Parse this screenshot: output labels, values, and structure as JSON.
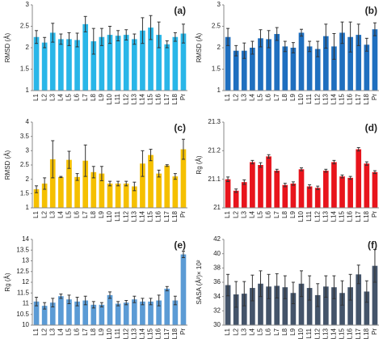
{
  "chart_data": [
    {
      "type": "bar",
      "label": "(a)",
      "ylabel": "RMSD (Å)",
      "color": "#29b6e8",
      "categories": [
        "L1",
        "L2",
        "L3",
        "L4",
        "L5",
        "L6",
        "L7",
        "L8",
        "L9",
        "L10",
        "L11",
        "L12",
        "L13",
        "L14",
        "L15",
        "L16",
        "L17",
        "L18",
        "Pr"
      ],
      "values": [
        2.25,
        2.12,
        2.35,
        2.2,
        2.2,
        2.18,
        2.55,
        2.15,
        2.25,
        2.3,
        2.28,
        2.3,
        2.2,
        2.4,
        2.47,
        2.3,
        2.08,
        2.25,
        2.33
      ],
      "errors": [
        0.15,
        0.12,
        0.22,
        0.12,
        0.15,
        0.16,
        0.18,
        0.3,
        0.2,
        0.2,
        0.12,
        0.12,
        0.12,
        0.3,
        0.28,
        0.3,
        0.08,
        0.1,
        0.22
      ],
      "ylim": [
        1,
        3
      ],
      "yticks": [
        1,
        1.5,
        2,
        2.5,
        3
      ]
    },
    {
      "type": "bar",
      "label": "(b)",
      "ylabel": "RMSD (Å)",
      "color": "#1f6fbf",
      "categories": [
        "L1",
        "L2",
        "L3",
        "L4",
        "L5",
        "L6",
        "L7",
        "L8",
        "L9",
        "L10",
        "L11",
        "L12",
        "L13",
        "L14",
        "L15",
        "L16",
        "L17",
        "L18",
        "Pr"
      ],
      "values": [
        2.25,
        1.93,
        1.93,
        2.0,
        2.22,
        2.2,
        2.32,
        2.03,
        2.0,
        2.35,
        2.03,
        1.97,
        2.27,
        2.03,
        2.35,
        2.25,
        2.3,
        2.07,
        2.43
      ],
      "errors": [
        0.2,
        0.12,
        0.18,
        0.15,
        0.2,
        0.2,
        0.15,
        0.12,
        0.12,
        0.08,
        0.12,
        0.18,
        0.28,
        0.3,
        0.25,
        0.35,
        0.25,
        0.15,
        0.15
      ],
      "ylim": [
        1,
        3
      ],
      "yticks": [
        1,
        1.5,
        2,
        2.5,
        3
      ]
    },
    {
      "type": "bar",
      "label": "(c)",
      "ylabel": "RMSD (Å)",
      "color": "#f5c000",
      "categories": [
        "L1",
        "L2",
        "L3",
        "L4",
        "L5",
        "L6",
        "L7",
        "L8",
        "L9",
        "L10",
        "L11",
        "L12",
        "L13",
        "L14",
        "L15",
        "L16",
        "L17",
        "L18",
        "Pr"
      ],
      "values": [
        1.65,
        1.85,
        2.7,
        2.08,
        2.68,
        2.08,
        2.65,
        2.25,
        2.2,
        1.85,
        1.85,
        1.85,
        1.75,
        2.55,
        2.85,
        2.2,
        2.48,
        2.1,
        3.05
      ],
      "errors": [
        0.12,
        0.2,
        0.65,
        0.02,
        0.3,
        0.12,
        0.55,
        0.2,
        0.25,
        0.08,
        0.08,
        0.08,
        0.15,
        0.45,
        0.2,
        0.12,
        0.03,
        0.1,
        0.35
      ],
      "ylim": [
        1,
        4
      ],
      "yticks": [
        1,
        1.5,
        2,
        2.5,
        3,
        3.5,
        4
      ]
    },
    {
      "type": "bar",
      "label": "(d)",
      "ylabel": "Rg (Å)",
      "color": "#e8141c",
      "categories": [
        "L1",
        "L2",
        "L3",
        "L4",
        "L5",
        "L6",
        "L7",
        "L8",
        "L9",
        "L10",
        "L11",
        "L12",
        "L13",
        "L14",
        "L15",
        "L16",
        "L17",
        "L18",
        "Pr"
      ],
      "values": [
        21.1,
        21.06,
        21.09,
        21.16,
        21.15,
        21.18,
        21.13,
        21.08,
        21.085,
        21.135,
        21.075,
        21.07,
        21.13,
        21.16,
        21.11,
        21.105,
        21.205,
        21.155,
        21.125
      ],
      "errors": [
        0.008,
        0.006,
        0.008,
        0.006,
        0.008,
        0.006,
        0.005,
        0.006,
        0.006,
        0.005,
        0.006,
        0.006,
        0.005,
        0.006,
        0.005,
        0.005,
        0.006,
        0.006,
        0.005
      ],
      "ylim": [
        21,
        21.3
      ],
      "yticks": [
        21,
        21.1,
        21.2,
        21.3
      ]
    },
    {
      "type": "bar",
      "label": "(e)",
      "ylabel": "Rg (Å)",
      "color": "#5b9bd5",
      "categories": [
        "L1",
        "L2",
        "L3",
        "L4",
        "L5",
        "L6",
        "L7",
        "L8",
        "L9",
        "L10",
        "L11",
        "L12",
        "L13",
        "L14",
        "L15",
        "L16",
        "L17",
        "L18",
        "Pr"
      ],
      "values": [
        11.1,
        10.9,
        11.05,
        11.35,
        11.2,
        11.1,
        11.15,
        10.95,
        10.95,
        11.4,
        11.0,
        11.05,
        11.2,
        11.1,
        11.1,
        11.15,
        11.7,
        11.15,
        13.3
      ],
      "errors": [
        0.2,
        0.15,
        0.2,
        0.1,
        0.2,
        0.2,
        0.2,
        0.15,
        0.1,
        0.15,
        0.1,
        0.1,
        0.15,
        0.15,
        0.15,
        0.25,
        0.1,
        0.2,
        0.15
      ],
      "ylim": [
        10,
        14
      ],
      "yticks": [
        10,
        10.5,
        11,
        11.5,
        12,
        12.5,
        13,
        13.5,
        14
      ]
    },
    {
      "type": "bar",
      "label": "(f)",
      "ylabel": "SASA (Å²)× 10²",
      "color": "#44546a",
      "categories": [
        "L1",
        "L2",
        "L3",
        "L4",
        "L5",
        "L6",
        "L7",
        "L8",
        "L9",
        "L10",
        "L11",
        "L12",
        "L13",
        "L14",
        "L15",
        "L16",
        "L17",
        "L18",
        "Pr"
      ],
      "values": [
        35.6,
        34.3,
        34.4,
        35.2,
        35.8,
        35.4,
        35.5,
        35.3,
        34.5,
        35.8,
        35.2,
        34.2,
        35.4,
        35.3,
        34.5,
        35.3,
        37.1,
        34.7,
        38.3
      ],
      "errors": [
        1.5,
        1.8,
        1.7,
        1.8,
        1.8,
        1.7,
        1.7,
        1.6,
        1.5,
        1.8,
        1.7,
        1.6,
        1.5,
        1.6,
        1.7,
        1.8,
        1.3,
        1.5,
        2.3
      ],
      "ylim": [
        30,
        42
      ],
      "yticks": [
        30,
        32,
        34,
        36,
        38,
        40,
        42
      ]
    }
  ]
}
